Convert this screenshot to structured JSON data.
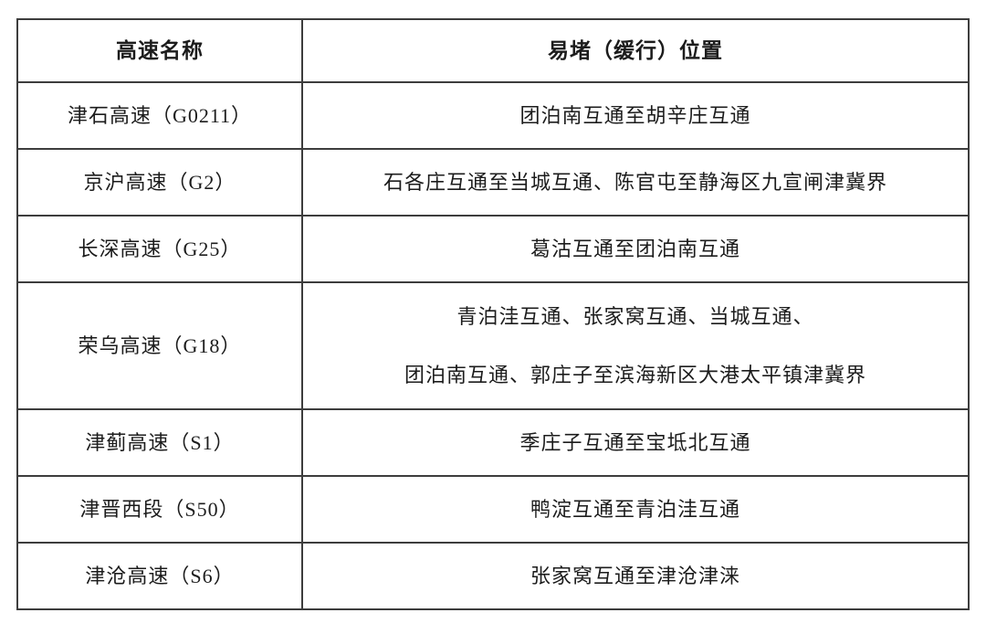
{
  "table": {
    "headers": [
      "高速名称",
      "易堵（缓行）位置"
    ],
    "rows": [
      {
        "name": "津石高速（G0211）",
        "lines": [
          "团泊南互通至胡辛庄互通"
        ]
      },
      {
        "name": "京沪高速（G2）",
        "lines": [
          "石各庄互通至当城互通、陈官屯至静海区九宣闸津冀界"
        ]
      },
      {
        "name": "长深高速（G25）",
        "lines": [
          "葛沽互通至团泊南互通"
        ]
      },
      {
        "name": "荣乌高速（G18）",
        "lines": [
          "青泊洼互通、张家窝互通、当城互通、",
          "团泊南互通、郭庄子至滨海新区大港太平镇津冀界"
        ]
      },
      {
        "name": "津蓟高速（S1）",
        "lines": [
          "季庄子互通至宝坻北互通"
        ]
      },
      {
        "name": "津晋西段（S50）",
        "lines": [
          "鸭淀互通至青泊洼互通"
        ]
      },
      {
        "name": "津沧高速（S6）",
        "lines": [
          "张家窝互通至津沧津涞"
        ]
      }
    ],
    "colors": {
      "border": "#3d3d3d",
      "text": "#1c1c1c",
      "background": "#ffffff"
    }
  }
}
